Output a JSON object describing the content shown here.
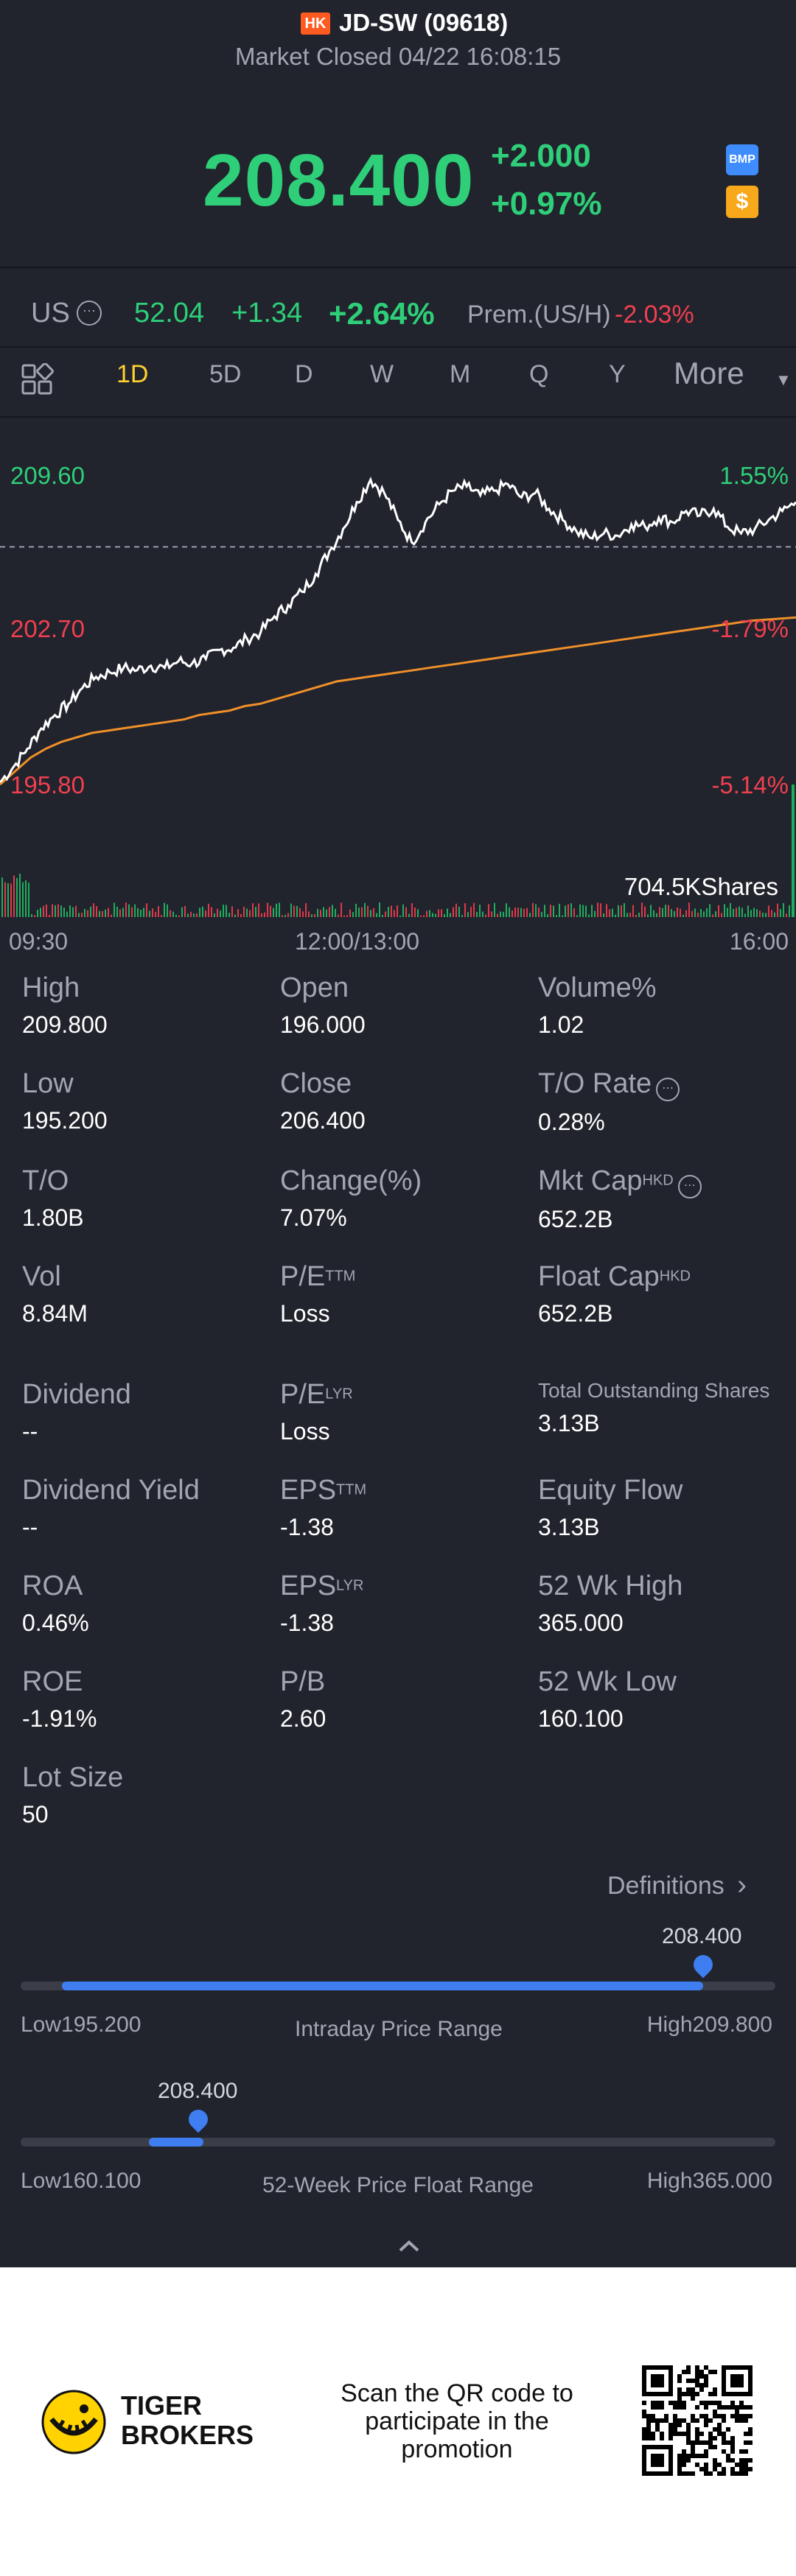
{
  "header": {
    "market_badge": "HK",
    "ticker": "JD-SW (09618)",
    "status": "Market Closed 04/22 16:08:15",
    "price": "208.400",
    "change_abs": "+2.000",
    "change_pct": "+0.97%",
    "bmp_icon_label": "BMP",
    "dollar_icon_label": "$"
  },
  "us_quote": {
    "label": "US",
    "price": "52.04",
    "change_abs": "+1.34",
    "change_pct": "+2.64%",
    "premium_label": "Prem.(US/H)",
    "premium_value": "-2.03%"
  },
  "tabs": {
    "grid_icon": "grid-icon",
    "items": [
      "1D",
      "5D",
      "D",
      "W",
      "M",
      "Q",
      "Y"
    ],
    "active": "1D",
    "more_label": "More"
  },
  "chart_labels": {
    "high_price": "209.60",
    "high_pct": "1.55%",
    "mid_price": "202.70",
    "mid_pct": "-1.79%",
    "low_price": "195.80",
    "low_pct": "-5.14%",
    "volume_max": "704.5KShares",
    "time_start": "09:30",
    "time_mid": "12:00/13:00",
    "time_end": "16:00"
  },
  "chart_data": {
    "type": "line",
    "ylim": [
      195.8,
      209.6
    ],
    "prev_close": 206.4,
    "series": [
      {
        "values": [
          195.9,
          196.6,
          197.4,
          198.3,
          198.9,
          199.4,
          200.1,
          200.6,
          200.8,
          201.0,
          200.9,
          201.1,
          201.0,
          201.3,
          201.2,
          201.4,
          201.8,
          201.9,
          202.3,
          202.6,
          203.3,
          203.8,
          204.4,
          205.2,
          206.2,
          207.2,
          208.4,
          209.4,
          208.8,
          207.6,
          206.6,
          207.5,
          208.3,
          208.9,
          209.1,
          208.7,
          208.9,
          209.2,
          208.6,
          208.8,
          208.1,
          207.6,
          207.1,
          206.8,
          207.0,
          206.9,
          207.4,
          207.3,
          207.7,
          207.5,
          208.0,
          207.8,
          208.1,
          207.3,
          207.0,
          207.2,
          207.6,
          208.0,
          208.4
        ]
      },
      {
        "values": [
          195.8,
          196.4,
          197.0,
          197.4,
          197.7,
          197.9,
          198.1,
          198.2,
          198.3,
          198.4,
          198.5,
          198.6,
          198.7,
          198.9,
          199.0,
          199.1,
          199.3,
          199.4,
          199.6,
          199.8,
          200.0,
          200.2,
          200.4,
          200.5,
          200.6,
          200.7,
          200.8,
          200.9,
          201.0,
          201.1,
          201.2,
          201.3,
          201.4,
          201.5,
          201.6,
          201.7,
          201.8,
          201.9,
          202.0,
          202.1,
          202.2,
          202.3,
          202.4,
          202.5,
          202.6,
          202.7,
          202.8,
          202.9,
          203.0,
          203.1,
          203.15,
          203.2,
          203.25
        ]
      }
    ],
    "volume_max_shares": 704500
  },
  "stats": [
    {
      "label": "High",
      "value": "209.800"
    },
    {
      "label": "Open",
      "value": "196.000"
    },
    {
      "label": "Volume%",
      "value": "1.02"
    },
    {
      "label": "Low",
      "value": "195.200"
    },
    {
      "label": "Close",
      "value": "206.400"
    },
    {
      "label": "T/O Rate",
      "value": "0.28%"
    },
    {
      "label": "T/O",
      "value": "1.80B"
    },
    {
      "label": "Change(%)",
      "value": "7.07%"
    },
    {
      "label": "Mkt Cap",
      "sup": "HKD",
      "value": "652.2B"
    },
    {
      "label": "Vol",
      "value": "8.84M"
    },
    {
      "label": "P/E",
      "sup": "TTM",
      "value": "Loss"
    },
    {
      "label": "Float Cap",
      "sup": "HKD",
      "value": "652.2B"
    },
    {
      "label": "Dividend",
      "value": "--"
    },
    {
      "label": "P/E",
      "sup": "LYR",
      "value": "Loss"
    },
    {
      "label": "Total Outstanding Shares",
      "value": "3.13B"
    },
    {
      "label": "Dividend Yield",
      "value": "--"
    },
    {
      "label": "EPS",
      "sup": "TTM",
      "value": "-1.38"
    },
    {
      "label": "Equity Flow",
      "value": "3.13B"
    },
    {
      "label": "ROA",
      "value": "0.46%"
    },
    {
      "label": "EPS",
      "sup": "LYR",
      "value": "-1.38"
    },
    {
      "label": "52 Wk High",
      "value": "365.000"
    },
    {
      "label": "ROE",
      "value": "-1.91%"
    },
    {
      "label": "P/B",
      "value": "2.60"
    },
    {
      "label": "52 Wk Low",
      "value": "160.100"
    },
    {
      "label": "Lot Size",
      "value": "50"
    }
  ],
  "definitions_label": "Definitions",
  "intraday_range": {
    "current": "208.400",
    "low_label": "Low195.200",
    "high_label": "High209.800",
    "title": "Intraday Price Range",
    "position": 0.9
  },
  "week52_range": {
    "current": "208.400",
    "low_label": "Low160.100",
    "high_label": "High365.000",
    "title": "52-Week Price Float Range",
    "position": 0.24
  },
  "footer": {
    "brand_line1": "TIGER",
    "brand_line2": "BROKERS",
    "promo_line1": "Scan the QR code to",
    "promo_line2": "participate in the",
    "promo_line3": "promotion"
  }
}
